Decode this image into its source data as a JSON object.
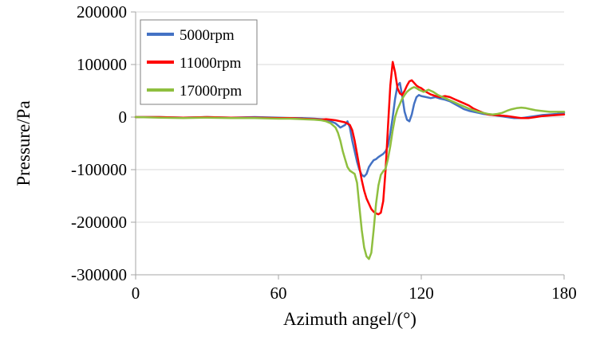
{
  "chart_data": {
    "type": "line",
    "title": "",
    "xlabel": "Azimuth angel/(°)",
    "ylabel": "Pressure/Pa",
    "xlim": [
      0,
      180
    ],
    "ylim": [
      -300000,
      200000
    ],
    "grid": "horizontal",
    "legend_position": "top-left-inside",
    "colors": {
      "grid": "#d9d9d9",
      "axis": "#a6a6a6",
      "text": "#000000",
      "legend_border": "#7f7f7f"
    },
    "x_ticks": [
      {
        "value": 0,
        "label": "0"
      },
      {
        "value": 60,
        "label": "60"
      },
      {
        "value": 120,
        "label": "120"
      },
      {
        "value": 180,
        "label": "180"
      }
    ],
    "y_ticks": [
      {
        "value": 200000,
        "label": "200000"
      },
      {
        "value": 100000,
        "label": "100000"
      },
      {
        "value": 0,
        "label": "0"
      },
      {
        "value": -100000,
        "label": "-100000"
      },
      {
        "value": -200000,
        "label": "-200000"
      },
      {
        "value": -300000,
        "label": "-300000"
      }
    ],
    "series": [
      {
        "name": "5000rpm",
        "color": "#4472c4",
        "points": [
          [
            0,
            0
          ],
          [
            10,
            0
          ],
          [
            20,
            -1000
          ],
          [
            30,
            0
          ],
          [
            40,
            -1000
          ],
          [
            50,
            0
          ],
          [
            60,
            -1000
          ],
          [
            65,
            -2000
          ],
          [
            70,
            -2000
          ],
          [
            75,
            -3000
          ],
          [
            78,
            -4000
          ],
          [
            80,
            -5000
          ],
          [
            82,
            -8000
          ],
          [
            84,
            -12000
          ],
          [
            86,
            -20000
          ],
          [
            88,
            -15000
          ],
          [
            89,
            -8000
          ],
          [
            90,
            -20000
          ],
          [
            91,
            -45000
          ],
          [
            92,
            -65000
          ],
          [
            93,
            -85000
          ],
          [
            94,
            -100000
          ],
          [
            95,
            -110000
          ],
          [
            96,
            -113000
          ],
          [
            97,
            -108000
          ],
          [
            98,
            -95000
          ],
          [
            99,
            -88000
          ],
          [
            100,
            -82000
          ],
          [
            101,
            -80000
          ],
          [
            102,
            -76000
          ],
          [
            103,
            -73000
          ],
          [
            104,
            -70000
          ],
          [
            105,
            -65000
          ],
          [
            106,
            -55000
          ],
          [
            107,
            -30000
          ],
          [
            108,
            0
          ],
          [
            109,
            35000
          ],
          [
            110,
            60000
          ],
          [
            111,
            65000
          ],
          [
            112,
            40000
          ],
          [
            113,
            10000
          ],
          [
            114,
            -5000
          ],
          [
            115,
            -8000
          ],
          [
            116,
            5000
          ],
          [
            117,
            25000
          ],
          [
            118,
            38000
          ],
          [
            119,
            42000
          ],
          [
            120,
            40000
          ],
          [
            122,
            38000
          ],
          [
            124,
            36000
          ],
          [
            126,
            38000
          ],
          [
            128,
            35000
          ],
          [
            130,
            33000
          ],
          [
            132,
            30000
          ],
          [
            134,
            25000
          ],
          [
            136,
            20000
          ],
          [
            138,
            15000
          ],
          [
            140,
            12000
          ],
          [
            142,
            10000
          ],
          [
            144,
            8000
          ],
          [
            146,
            6000
          ],
          [
            148,
            5000
          ],
          [
            150,
            4000
          ],
          [
            153,
            2000
          ],
          [
            156,
            0
          ],
          [
            159,
            -2000
          ],
          [
            162,
            -2000
          ],
          [
            165,
            0
          ],
          [
            168,
            2000
          ],
          [
            171,
            4000
          ],
          [
            174,
            5000
          ],
          [
            177,
            6000
          ],
          [
            180,
            8000
          ]
        ]
      },
      {
        "name": "11000rpm",
        "color": "#ff0000",
        "points": [
          [
            0,
            0
          ],
          [
            10,
            0
          ],
          [
            20,
            -1000
          ],
          [
            30,
            0
          ],
          [
            40,
            -1000
          ],
          [
            50,
            -1000
          ],
          [
            60,
            -2000
          ],
          [
            65,
            -2000
          ],
          [
            70,
            -3000
          ],
          [
            75,
            -4000
          ],
          [
            78,
            -5000
          ],
          [
            80,
            -4000
          ],
          [
            82,
            -5000
          ],
          [
            84,
            -6000
          ],
          [
            86,
            -8000
          ],
          [
            88,
            -10000
          ],
          [
            90,
            -15000
          ],
          [
            91,
            -25000
          ],
          [
            92,
            -45000
          ],
          [
            93,
            -70000
          ],
          [
            94,
            -95000
          ],
          [
            95,
            -120000
          ],
          [
            96,
            -140000
          ],
          [
            97,
            -155000
          ],
          [
            98,
            -165000
          ],
          [
            99,
            -175000
          ],
          [
            100,
            -180000
          ],
          [
            101,
            -183000
          ],
          [
            102,
            -185000
          ],
          [
            103,
            -182000
          ],
          [
            104,
            -160000
          ],
          [
            105,
            -100000
          ],
          [
            106,
            -20000
          ],
          [
            107,
            60000
          ],
          [
            108,
            105000
          ],
          [
            109,
            85000
          ],
          [
            110,
            55000
          ],
          [
            111,
            45000
          ],
          [
            112,
            42000
          ],
          [
            113,
            50000
          ],
          [
            114,
            60000
          ],
          [
            115,
            68000
          ],
          [
            116,
            70000
          ],
          [
            117,
            65000
          ],
          [
            118,
            60000
          ],
          [
            119,
            57000
          ],
          [
            120,
            55000
          ],
          [
            122,
            48000
          ],
          [
            124,
            43000
          ],
          [
            126,
            40000
          ],
          [
            128,
            38000
          ],
          [
            130,
            40000
          ],
          [
            132,
            38000
          ],
          [
            134,
            34000
          ],
          [
            136,
            30000
          ],
          [
            138,
            26000
          ],
          [
            140,
            22000
          ],
          [
            142,
            16000
          ],
          [
            144,
            12000
          ],
          [
            146,
            8000
          ],
          [
            148,
            5000
          ],
          [
            150,
            4000
          ],
          [
            153,
            3000
          ],
          [
            156,
            2000
          ],
          [
            159,
            0
          ],
          [
            162,
            -2000
          ],
          [
            165,
            -2000
          ],
          [
            168,
            0
          ],
          [
            171,
            2000
          ],
          [
            174,
            3000
          ],
          [
            177,
            4000
          ],
          [
            180,
            5000
          ]
        ]
      },
      {
        "name": "17000rpm",
        "color": "#8fbf3f",
        "points": [
          [
            0,
            0
          ],
          [
            10,
            -1000
          ],
          [
            20,
            -2000
          ],
          [
            30,
            -1000
          ],
          [
            40,
            -2000
          ],
          [
            50,
            -2000
          ],
          [
            60,
            -3000
          ],
          [
            65,
            -3000
          ],
          [
            70,
            -4000
          ],
          [
            75,
            -5000
          ],
          [
            78,
            -6000
          ],
          [
            80,
            -8000
          ],
          [
            82,
            -12000
          ],
          [
            84,
            -20000
          ],
          [
            85,
            -30000
          ],
          [
            86,
            -45000
          ],
          [
            87,
            -65000
          ],
          [
            88,
            -80000
          ],
          [
            89,
            -95000
          ],
          [
            90,
            -102000
          ],
          [
            91,
            -105000
          ],
          [
            92,
            -108000
          ],
          [
            93,
            -125000
          ],
          [
            94,
            -170000
          ],
          [
            95,
            -215000
          ],
          [
            96,
            -248000
          ],
          [
            97,
            -265000
          ],
          [
            98,
            -270000
          ],
          [
            99,
            -258000
          ],
          [
            100,
            -215000
          ],
          [
            101,
            -165000
          ],
          [
            102,
            -130000
          ],
          [
            103,
            -110000
          ],
          [
            104,
            -103000
          ],
          [
            105,
            -98000
          ],
          [
            106,
            -80000
          ],
          [
            107,
            -55000
          ],
          [
            108,
            -25000
          ],
          [
            109,
            0
          ],
          [
            110,
            15000
          ],
          [
            111,
            25000
          ],
          [
            112,
            35000
          ],
          [
            113,
            42000
          ],
          [
            114,
            48000
          ],
          [
            115,
            52000
          ],
          [
            116,
            55000
          ],
          [
            117,
            57000
          ],
          [
            118,
            55000
          ],
          [
            119,
            52000
          ],
          [
            120,
            50000
          ],
          [
            121,
            48000
          ],
          [
            122,
            50000
          ],
          [
            123,
            52000
          ],
          [
            124,
            50000
          ],
          [
            125,
            48000
          ],
          [
            126,
            45000
          ],
          [
            127,
            42000
          ],
          [
            128,
            40000
          ],
          [
            130,
            36000
          ],
          [
            132,
            32000
          ],
          [
            134,
            28000
          ],
          [
            136,
            24000
          ],
          [
            138,
            20000
          ],
          [
            140,
            16000
          ],
          [
            142,
            13000
          ],
          [
            144,
            10000
          ],
          [
            146,
            8000
          ],
          [
            148,
            6000
          ],
          [
            150,
            5000
          ],
          [
            152,
            6000
          ],
          [
            154,
            8000
          ],
          [
            156,
            12000
          ],
          [
            158,
            15000
          ],
          [
            160,
            17000
          ],
          [
            162,
            18000
          ],
          [
            164,
            17000
          ],
          [
            166,
            15000
          ],
          [
            168,
            13000
          ],
          [
            170,
            12000
          ],
          [
            172,
            11000
          ],
          [
            174,
            10000
          ],
          [
            176,
            10000
          ],
          [
            178,
            10000
          ],
          [
            180,
            10000
          ]
        ]
      }
    ]
  }
}
